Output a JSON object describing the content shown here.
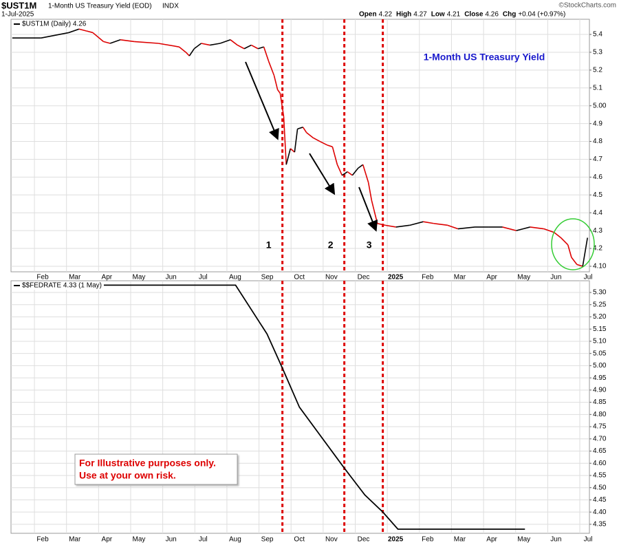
{
  "header": {
    "symbol": "$UST1M",
    "name": "1-Month US Treasury Yield (EOD)",
    "exchange": "INDX",
    "date": "1-Jul-2025",
    "source": "©StockCharts.com",
    "quote": [
      {
        "label": "Open",
        "value": "4.22"
      },
      {
        "label": "High",
        "value": "4.27"
      },
      {
        "label": "Low",
        "value": "4.21"
      },
      {
        "label": "Close",
        "value": "4.26"
      },
      {
        "label": "Chg",
        "value": "+0.04 (+0.97%)"
      }
    ]
  },
  "chart_data": [
    {
      "type": "line",
      "legend": "$UST1M (Daily) 4.26",
      "annotation": "1-Month US Treasury Yield",
      "x": [
        0.31,
        1.21,
        2.07,
        2.39,
        2.61,
        2.82,
        3.15,
        3.36,
        3.68,
        4.11,
        4.86,
        5.51,
        5.72,
        5.83,
        5.98,
        6.2,
        6.47,
        6.79,
        7.11,
        7.33,
        7.54,
        7.76,
        7.97,
        8.15,
        8.3,
        8.47,
        8.58,
        8.66,
        8.77,
        8.85,
        8.98,
        9.11,
        9.2,
        9.37,
        9.48,
        9.69,
        9.9,
        10.12,
        10.29,
        10.44,
        10.59,
        10.76,
        10.91,
        11.09,
        11.24,
        11.41,
        11.51,
        11.69,
        11.94,
        12.27,
        12.7,
        13.12,
        13.45,
        13.88,
        14.2,
        14.73,
        15.16,
        15.59,
        16.02,
        16.45,
        16.88,
        17.2,
        17.41,
        17.63,
        17.74,
        17.91,
        18.09,
        18.24
      ],
      "values": [
        5.38,
        5.38,
        5.41,
        5.43,
        5.42,
        5.41,
        5.36,
        5.35,
        5.37,
        5.36,
        5.35,
        5.33,
        5.3,
        5.28,
        5.32,
        5.35,
        5.34,
        5.35,
        5.37,
        5.34,
        5.32,
        5.34,
        5.32,
        5.33,
        5.25,
        5.17,
        5.09,
        5.07,
        4.94,
        4.67,
        4.76,
        4.74,
        4.87,
        4.88,
        4.85,
        4.82,
        4.8,
        4.78,
        4.77,
        4.67,
        4.61,
        4.63,
        4.61,
        4.65,
        4.67,
        4.57,
        4.47,
        4.34,
        4.33,
        4.32,
        4.33,
        4.35,
        4.34,
        4.33,
        4.31,
        4.32,
        4.32,
        4.32,
        4.3,
        4.32,
        4.31,
        4.29,
        4.26,
        4.22,
        4.15,
        4.11,
        4.1,
        4.26
      ],
      "up_color": "#000000",
      "down_color": "#dd0000",
      "vlines": [
        8.73,
        10.66,
        11.86
      ],
      "vline_color": "#dd0000",
      "event_labels": [
        "1",
        "2",
        "3"
      ],
      "xlim": [
        0.27,
        18.3
      ],
      "ylim": [
        4.069,
        5.485
      ],
      "xticks": [
        {
          "value": 1,
          "label": "Feb"
        },
        {
          "value": 2,
          "label": "Mar"
        },
        {
          "value": 3,
          "label": "Apr"
        },
        {
          "value": 4,
          "label": "May"
        },
        {
          "value": 5,
          "label": "Jun"
        },
        {
          "value": 6,
          "label": "Jul"
        },
        {
          "value": 7,
          "label": "Aug"
        },
        {
          "value": 8,
          "label": "Sep"
        },
        {
          "value": 9,
          "label": "Oct"
        },
        {
          "value": 10,
          "label": "Nov"
        },
        {
          "value": 11,
          "label": "Dec"
        },
        {
          "value": 12,
          "label": "2025"
        },
        {
          "value": 13,
          "label": "Feb"
        },
        {
          "value": 14,
          "label": "Mar"
        },
        {
          "value": 15,
          "label": "Apr"
        },
        {
          "value": 16,
          "label": "May"
        },
        {
          "value": 17,
          "label": "Jun"
        },
        {
          "value": 18,
          "label": "Jul"
        }
      ],
      "yticks": [
        {
          "value": 4.1,
          "label": "4.10"
        },
        4.2,
        4.3,
        4.4,
        4.5,
        4.6,
        4.7,
        4.8,
        4.9,
        {
          "value": 5,
          "label": "5.00"
        },
        5.1,
        5.2,
        5.3,
        5.4
      ],
      "grid": true
    },
    {
      "type": "line",
      "legend": "$$FEDRATE 4.33 (1 May)",
      "color": "#000000",
      "note": [
        "For Illustrative purposes only.",
        "Use at your own risk."
      ],
      "x": [
        0.31,
        7.27,
        8.25,
        8.73,
        9.26,
        10.66,
        11.3,
        11.86,
        12.33,
        16.29
      ],
      "values": [
        5.33,
        5.33,
        5.13,
        4.99,
        4.83,
        4.58,
        4.47,
        4.4,
        4.33,
        4.33
      ],
      "vlines": [
        8.73,
        10.66,
        11.86
      ],
      "vline_color": "#dd0000",
      "xlim": [
        0.27,
        18.3
      ],
      "ylim": [
        4.313,
        5.348
      ],
      "xticks": [
        {
          "value": 1,
          "label": "Feb"
        },
        {
          "value": 2,
          "label": "Mar"
        },
        {
          "value": 3,
          "label": "Apr"
        },
        {
          "value": 4,
          "label": "May"
        },
        {
          "value": 5,
          "label": "Jun"
        },
        {
          "value": 6,
          "label": "Jul"
        },
        {
          "value": 7,
          "label": "Aug"
        },
        {
          "value": 8,
          "label": "Sep"
        },
        {
          "value": 9,
          "label": "Oct"
        },
        {
          "value": 10,
          "label": "Nov"
        },
        {
          "value": 11,
          "label": "Dec"
        },
        {
          "value": 12,
          "label": "2025"
        },
        {
          "value": 13,
          "label": "Feb"
        },
        {
          "value": 14,
          "label": "Mar"
        },
        {
          "value": 15,
          "label": "Apr"
        },
        {
          "value": 16,
          "label": "May"
        },
        {
          "value": 17,
          "label": "Jun"
        },
        {
          "value": 18,
          "label": "Jul"
        }
      ],
      "yticks": [
        4.35,
        {
          "value": 4.4,
          "label": "4.40"
        },
        4.45,
        {
          "value": 4.5,
          "label": "4.50"
        },
        4.55,
        {
          "value": 4.6,
          "label": "4.60"
        },
        4.65,
        {
          "value": 4.7,
          "label": "4.70"
        },
        4.75,
        {
          "value": 4.8,
          "label": "4.80"
        },
        4.85,
        {
          "value": 4.9,
          "label": "4.90"
        },
        4.95,
        {
          "value": 5,
          "label": "5.00"
        },
        5.05,
        {
          "value": 5.1,
          "label": "5.10"
        },
        5.15,
        {
          "value": 5.2,
          "label": "5.20"
        },
        5.25,
        {
          "value": 5.3,
          "label": "5.30"
        }
      ],
      "grid": true
    }
  ]
}
